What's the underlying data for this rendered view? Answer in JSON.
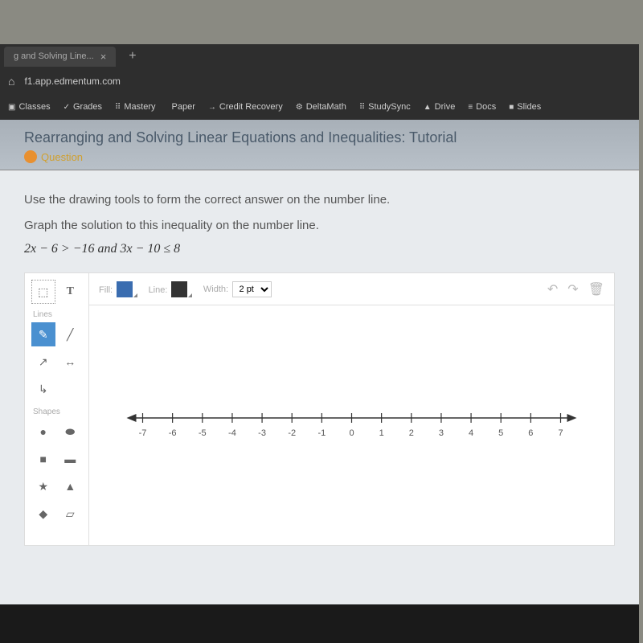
{
  "browser": {
    "tab_label": "g and Solving Line...",
    "url": "f1.app.edmentum.com",
    "bookmarks": [
      {
        "icon": "▣",
        "label": "Classes"
      },
      {
        "icon": "✓",
        "label": "Grades"
      },
      {
        "icon": "⠿",
        "label": "Mastery"
      },
      {
        "icon": "",
        "label": "Paper"
      },
      {
        "icon": "→",
        "label": "Credit Recovery"
      },
      {
        "icon": "⚙",
        "label": "DeltaMath"
      },
      {
        "icon": "⠿",
        "label": "StudySync"
      },
      {
        "icon": "▲",
        "label": "Drive"
      },
      {
        "icon": "≡",
        "label": "Docs"
      },
      {
        "icon": "■",
        "label": "Slides"
      }
    ]
  },
  "page": {
    "title": "Rearranging and Solving Linear Equations and Inequalities: Tutorial",
    "question_label": "Question"
  },
  "instructions": {
    "line1": "Use the drawing tools to form the correct answer on the number line.",
    "line2": "Graph the solution to this inequality on the number line.",
    "inequality": "2x − 6 > −16 and 3x − 10 ≤ 8"
  },
  "toolbar": {
    "fill_label": "Fill:",
    "line_label": "Line:",
    "width_label": "Width:",
    "width_value": "2 pt",
    "fill_color": "#3a6db0",
    "line_color": "#333333"
  },
  "tools": {
    "lines_label": "Lines",
    "shapes_label": "Shapes"
  },
  "numberline": {
    "min": -7,
    "max": 7,
    "ticks": [
      -7,
      -6,
      -5,
      -4,
      -3,
      -2,
      -1,
      0,
      1,
      2,
      3,
      4,
      5,
      6,
      7
    ],
    "axis_color": "#333333",
    "tick_color": "#333333",
    "label_color": "#555555",
    "label_fontsize": 11
  }
}
